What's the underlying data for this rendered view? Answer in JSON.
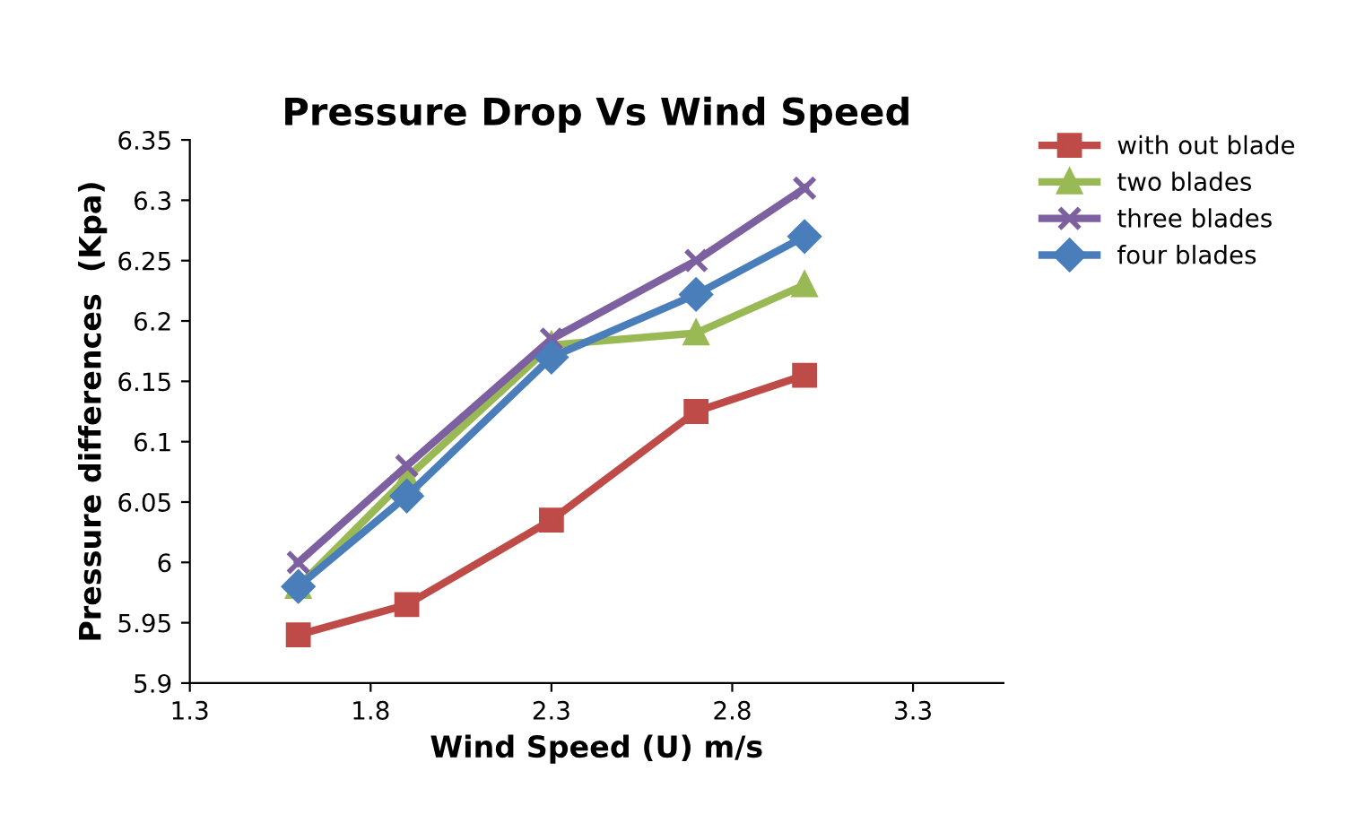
{
  "chart_data": {
    "type": "line",
    "title": "Pressure Drop Vs Wind Speed",
    "xlabel": "Wind Speed (U) m/s",
    "ylabel": "Pressure differences  (Kpa)",
    "x": [
      1.6,
      1.9,
      2.3,
      2.7,
      3.0
    ],
    "series": [
      {
        "name": "with out blade",
        "color": "#be4b48",
        "marker": "square",
        "values": [
          5.94,
          5.965,
          6.035,
          6.125,
          6.155
        ]
      },
      {
        "name": "two blades",
        "color": "#98b954",
        "marker": "triangle",
        "values": [
          5.98,
          6.07,
          6.18,
          6.19,
          6.23
        ]
      },
      {
        "name": "three blades",
        "color": "#7d60a0",
        "marker": "cross",
        "values": [
          6.0,
          6.08,
          6.185,
          6.25,
          6.31
        ]
      },
      {
        "name": "four blades",
        "color": "#4a7ebb",
        "marker": "diamond",
        "values": [
          5.98,
          6.055,
          6.17,
          6.222,
          6.27
        ]
      }
    ],
    "xlim": [
      1.3,
      3.55
    ],
    "xticks": [
      1.3,
      1.8,
      2.3,
      2.8,
      3.3
    ],
    "ylim": [
      5.9,
      6.35
    ],
    "yticks": [
      5.9,
      5.95,
      6,
      6.05,
      6.1,
      6.15,
      6.2,
      6.25,
      6.3,
      6.35
    ],
    "grid": false,
    "legend": "right",
    "line_style": "solid"
  }
}
